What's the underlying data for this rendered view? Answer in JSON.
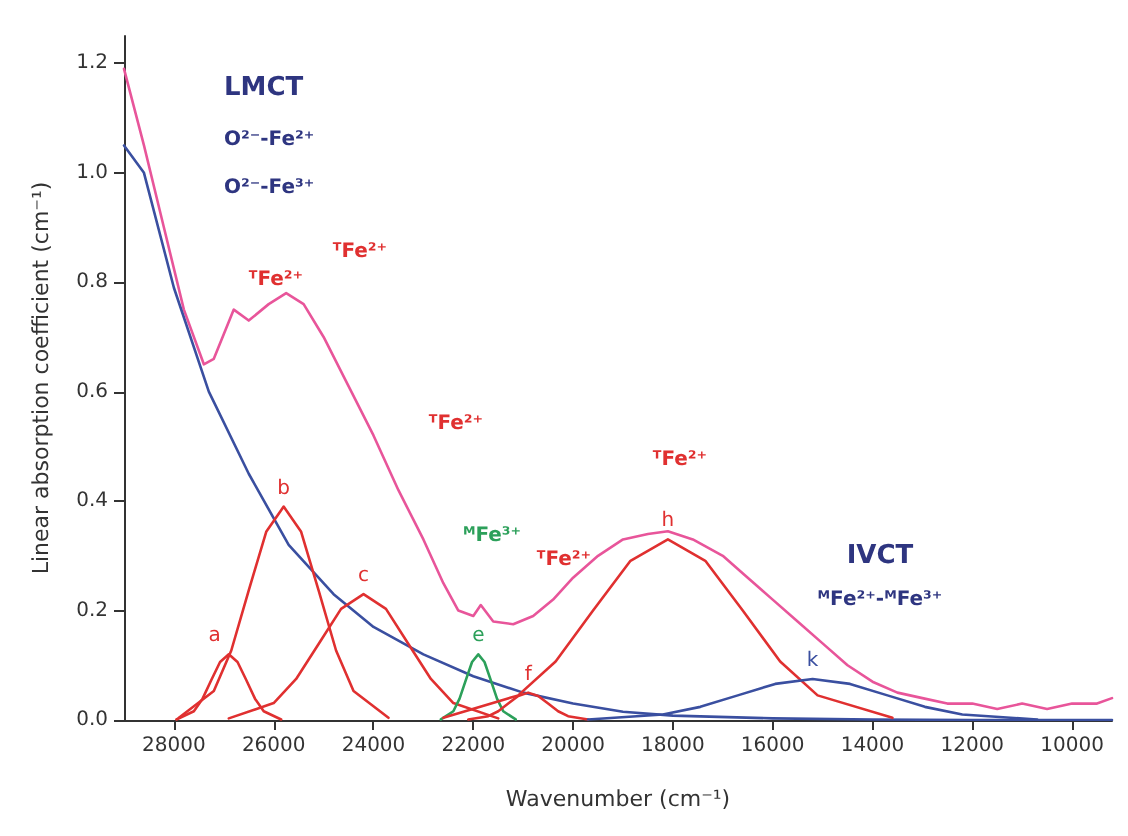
{
  "chart_data": {
    "type": "line",
    "xlabel": "Wavenumber (cm⁻¹)",
    "ylabel": "Linear absorption coefficient (cm⁻¹)",
    "xlim": [
      29000,
      9200
    ],
    "xticks": [
      28000,
      26000,
      24000,
      22000,
      20000,
      18000,
      16000,
      14000,
      12000,
      10000
    ],
    "ylim": [
      0,
      1.25
    ],
    "yticks": [
      {
        "value": 0,
        "label": "0.0"
      },
      0.2,
      0.4,
      0.6,
      0.8,
      {
        "value": 1,
        "label": "1.0"
      },
      1.2
    ],
    "grid": false,
    "legend": false,
    "series": [
      {
        "color": "#e8559a",
        "x": [
          29000,
          28600,
          28200,
          27800,
          27400,
          27200,
          26800,
          26500,
          26100,
          25750,
          25400,
          25000,
          24500,
          24000,
          23500,
          23000,
          22600,
          22300,
          22000,
          21850,
          21600,
          21200,
          20800,
          20400,
          20000,
          19500,
          19000,
          18500,
          18100,
          17600,
          17000,
          16500,
          16000,
          15500,
          15000,
          14500,
          14000,
          13500,
          13000,
          12500,
          12000,
          11500,
          11000,
          10500,
          10000,
          9500,
          9200
        ],
        "values": [
          1.19,
          1.05,
          0.9,
          0.75,
          0.65,
          0.66,
          0.75,
          0.73,
          0.76,
          0.78,
          0.76,
          0.7,
          0.61,
          0.52,
          0.42,
          0.33,
          0.25,
          0.2,
          0.19,
          0.21,
          0.18,
          0.175,
          0.19,
          0.22,
          0.26,
          0.3,
          0.33,
          0.34,
          0.345,
          0.33,
          0.3,
          0.26,
          0.22,
          0.18,
          0.14,
          0.1,
          0.07,
          0.05,
          0.04,
          0.03,
          0.03,
          0.02,
          0.03,
          0.02,
          0.03,
          0.03,
          0.04
        ]
      },
      {
        "color": "#3a4fa0",
        "x": [
          29000,
          28600,
          28000,
          27300,
          26500,
          25700,
          24800,
          24000,
          23000,
          22000,
          21000,
          20000,
          19000,
          18000,
          16000,
          14000,
          12000,
          9200
        ],
        "values": [
          1.05,
          1.0,
          0.79,
          0.6,
          0.45,
          0.32,
          0.23,
          0.17,
          0.12,
          0.08,
          0.05,
          0.03,
          0.015,
          0.008,
          0.003,
          0.001,
          0,
          0
        ]
      },
      {
        "name": "a",
        "color": "#e03030",
        "x": [
          27950,
          27600,
          27425,
          27250,
          27075,
          26900,
          26725,
          26550,
          26375,
          26200,
          25850
        ],
        "values": [
          0.001,
          0.016,
          0.039,
          0.073,
          0.106,
          0.12,
          0.106,
          0.073,
          0.039,
          0.016,
          0.001
        ]
      },
      {
        "name": "b",
        "color": "#e03030",
        "x": [
          27900,
          27200,
          26850,
          26500,
          26150,
          25800,
          25450,
          25100,
          24750,
          24400,
          23700
        ],
        "values": [
          0.004,
          0.053,
          0.127,
          0.237,
          0.344,
          0.39,
          0.344,
          0.237,
          0.127,
          0.053,
          0.004
        ]
      },
      {
        "name": "c",
        "color": "#e03030",
        "x": [
          26900,
          26000,
          25550,
          25100,
          24650,
          24200,
          23750,
          23300,
          22850,
          22400,
          21500
        ],
        "values": [
          0.003,
          0.031,
          0.075,
          0.139,
          0.203,
          0.23,
          0.203,
          0.139,
          0.075,
          0.031,
          0.003
        ]
      },
      {
        "name": "e",
        "color": "#2ca05a",
        "x": [
          22650,
          22400,
          22275,
          22150,
          22025,
          21900,
          21775,
          21650,
          21525,
          21400,
          21150
        ],
        "values": [
          0.001,
          0.016,
          0.039,
          0.073,
          0.106,
          0.12,
          0.106,
          0.073,
          0.039,
          0.016,
          0.001
        ]
      },
      {
        "name": "f",
        "color": "#e03030",
        "x": [
          22100,
          21700,
          21500,
          21300,
          21100,
          20900,
          20700,
          20500,
          20300,
          20100,
          19700
        ],
        "values": [
          0.001,
          0.007,
          0.016,
          0.03,
          0.044,
          0.05,
          0.044,
          0.03,
          0.016,
          0.007,
          0.001
        ]
      },
      {
        "name": "h",
        "color": "#e03030",
        "x": [
          22600,
          21100,
          20350,
          19600,
          18850,
          18100,
          17350,
          16600,
          15850,
          15100,
          13600
        ],
        "values": [
          0.004,
          0.045,
          0.107,
          0.2,
          0.291,
          0.33,
          0.291,
          0.2,
          0.107,
          0.045,
          0.004
        ]
      },
      {
        "name": "k",
        "color": "#3a4fa0",
        "x": [
          19700,
          18200,
          17450,
          16700,
          15950,
          15200,
          14450,
          13700,
          12950,
          12200,
          10700
        ],
        "values": [
          0.001,
          0.01,
          0.024,
          0.045,
          0.066,
          0.075,
          0.066,
          0.045,
          0.024,
          0.01,
          0.001
        ]
      }
    ],
    "annotations": [
      "LMCT",
      "O²⁻-Fe²⁺",
      "O²⁻-Fe³⁺",
      "ᵀFe²⁺",
      "ᵀFe²⁺",
      "ᵀFe²⁺",
      "ᴹFe³⁺",
      "ᵀFe²⁺",
      "ᵀFe²⁺",
      "IVCT",
      "ᴹFe²⁺-ᴹFe³⁺"
    ]
  }
}
